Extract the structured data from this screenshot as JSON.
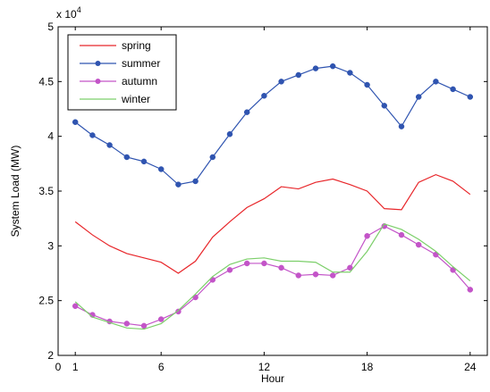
{
  "chart_data": {
    "type": "line",
    "xlabel": "Hour",
    "ylabel": "System Load (MW)",
    "y_multiplier_label": "x 10",
    "y_multiplier_exponent": "4",
    "xlim": [
      0,
      25
    ],
    "ylim": [
      20000,
      50000
    ],
    "xticks": [
      0,
      1,
      6,
      12,
      18,
      24
    ],
    "xtick_labels": [
      "0",
      "1",
      "6",
      "12",
      "18",
      "24"
    ],
    "yticks": [
      20000,
      25000,
      30000,
      35000,
      40000,
      45000,
      50000
    ],
    "ytick_labels": [
      "2",
      "2.5",
      "3",
      "3.5",
      "4",
      "4.5",
      "5"
    ],
    "grid": false,
    "legend_position": "top-left",
    "x": [
      1,
      2,
      3,
      4,
      5,
      6,
      7,
      8,
      9,
      10,
      11,
      12,
      13,
      14,
      15,
      16,
      17,
      18,
      19,
      20,
      21,
      22,
      23,
      24
    ],
    "series": [
      {
        "name": "spring",
        "color": "#e8262a",
        "marker": "none",
        "values": [
          32200,
          31000,
          30000,
          29300,
          28900,
          28500,
          27500,
          28600,
          30800,
          32200,
          33500,
          34300,
          35400,
          35200,
          35800,
          36100,
          35600,
          35000,
          33400,
          33300,
          35800,
          36500,
          35900,
          34700
        ]
      },
      {
        "name": "summer",
        "color": "#2f54b0",
        "marker": "circle",
        "values": [
          41300,
          40100,
          39200,
          38100,
          37700,
          37000,
          35600,
          35900,
          38100,
          40200,
          42200,
          43700,
          45000,
          45600,
          46200,
          46400,
          45800,
          44700,
          42800,
          40900,
          43600,
          45000,
          44300,
          43600
        ]
      },
      {
        "name": "autumn",
        "color": "#c354c8",
        "marker": "circle",
        "values": [
          24500,
          23700,
          23100,
          22900,
          22700,
          23300,
          24000,
          25300,
          26900,
          27800,
          28400,
          28400,
          28000,
          27300,
          27400,
          27300,
          28000,
          30900,
          31800,
          31000,
          30100,
          29200,
          27800,
          26000
        ]
      },
      {
        "name": "winter",
        "color": "#7ccf6a",
        "marker": "none",
        "values": [
          24900,
          23500,
          23000,
          22500,
          22400,
          22900,
          24100,
          25600,
          27200,
          28300,
          28800,
          28900,
          28600,
          28600,
          28500,
          27600,
          27600,
          29500,
          32000,
          31500,
          30600,
          29500,
          28100,
          26800
        ]
      }
    ]
  }
}
